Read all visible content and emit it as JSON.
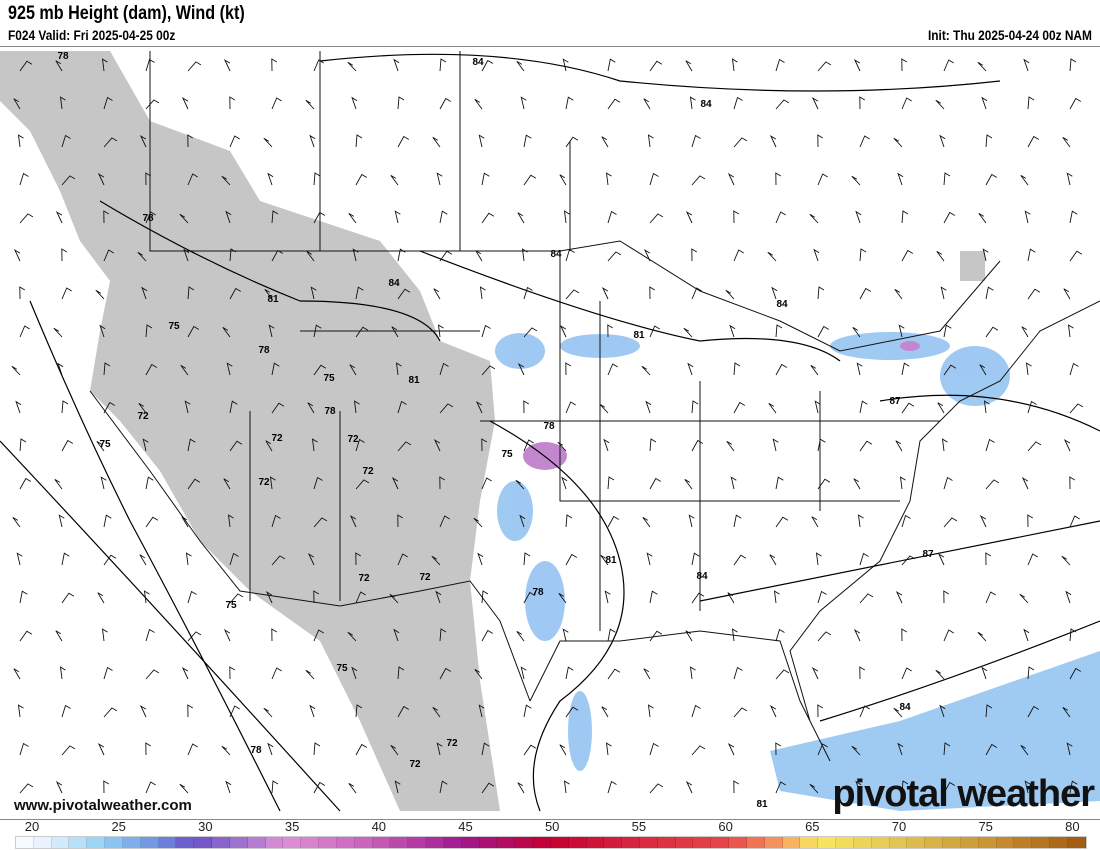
{
  "header": {
    "title": "925 mb Height (dam), Wind (kt)",
    "valid": "F024 Valid: Fri 2025-04-25 00z",
    "init": "Init: Thu 2025-04-24 00z NAM"
  },
  "map": {
    "contour_labels": [
      "78",
      "78",
      "84",
      "84",
      "84",
      "84",
      "84",
      "81",
      "75",
      "78",
      "81",
      "75",
      "78",
      "81",
      "72",
      "75",
      "72",
      "72",
      "72",
      "72",
      "78",
      "75",
      "72",
      "72",
      "75",
      "75",
      "78",
      "81",
      "84",
      "87",
      "87",
      "84",
      "72",
      "72",
      "81",
      "78"
    ],
    "terrain_color": "#c6c6c6",
    "wind_shading_color": "#7fb8ee"
  },
  "footer": {
    "website": "www.pivotalweather.com",
    "logo": "pivotal weather"
  },
  "colorbar": {
    "ticks": [
      "20",
      "25",
      "30",
      "35",
      "40",
      "45",
      "50",
      "55",
      "60",
      "65",
      "70",
      "75",
      "80"
    ],
    "min": 20,
    "max": 80,
    "stops": [
      [
        20,
        "#ffffff"
      ],
      [
        22,
        "#e0efff"
      ],
      [
        25,
        "#8fd0f5"
      ],
      [
        28,
        "#6e8ee0"
      ],
      [
        30,
        "#6a50c8"
      ],
      [
        33,
        "#a878d0"
      ],
      [
        35,
        "#e090d8"
      ],
      [
        40,
        "#c860b8"
      ],
      [
        45,
        "#a01890"
      ],
      [
        50,
        "#c80030"
      ],
      [
        55,
        "#d82840"
      ],
      [
        60,
        "#e84848"
      ],
      [
        63,
        "#f8a060"
      ],
      [
        65,
        "#f8e860"
      ],
      [
        70,
        "#e0c050"
      ],
      [
        75,
        "#c89030"
      ],
      [
        80,
        "#a05810"
      ]
    ]
  }
}
